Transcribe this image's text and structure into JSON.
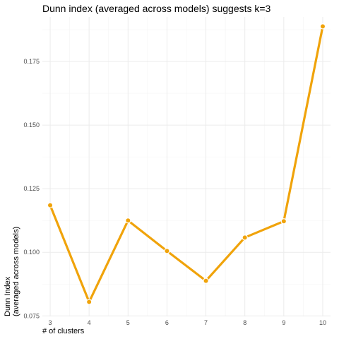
{
  "chart_data": {
    "type": "line",
    "title": "Dunn index (averaged across models) suggests k=3",
    "xlabel": "# of clusters",
    "ylabel_lines": [
      "Dunn Index",
      "(averaged across models)"
    ],
    "x": [
      3,
      4,
      5,
      6,
      7,
      8,
      9,
      10
    ],
    "values": [
      0.1185,
      0.0805,
      0.1125,
      0.1005,
      0.0888,
      0.1058,
      0.1122,
      0.1888
    ],
    "xticks": [
      3,
      4,
      5,
      6,
      7,
      8,
      9,
      10
    ],
    "yticks": [
      0.075,
      0.1,
      0.125,
      0.15,
      0.175
    ],
    "ytick_labels": [
      "0.075",
      "0.100",
      "0.125",
      "0.150",
      "0.175"
    ],
    "xlim": [
      2.8,
      10.2
    ],
    "ylim": [
      0.0748,
      0.1925
    ],
    "grid": true,
    "color": "#f0a30a"
  }
}
